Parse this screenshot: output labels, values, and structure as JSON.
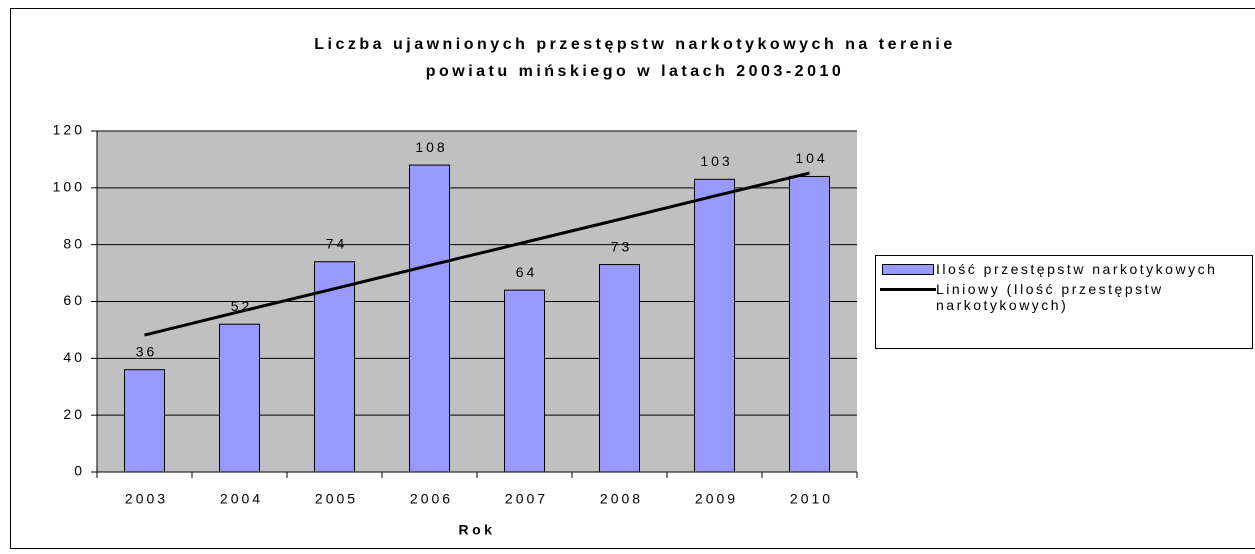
{
  "chart_data": {
    "type": "bar",
    "title": [
      "Liczba ujawnionych przestępstw narkotykowych na terenie",
      "powiatu mińskiego w latach 2003-2010"
    ],
    "x_label": "Rok",
    "categories": [
      "2003",
      "2004",
      "2005",
      "2006",
      "2007",
      "2008",
      "2009",
      "2010"
    ],
    "series": [
      {
        "name": "Ilość przestępstw narkotykowych",
        "type": "bar",
        "color": "#9999ff",
        "values": [
          36,
          52,
          74,
          108,
          64,
          73,
          103,
          104
        ]
      },
      {
        "name": "Liniowy (Ilość przestępstw narkotykowych)",
        "type": "line",
        "color": "#000000",
        "values": [
          48.2,
          56.4,
          64.5,
          72.7,
          80.8,
          88.9,
          97.1,
          105.2
        ]
      }
    ],
    "ylim": [
      0,
      120
    ],
    "yticks": [
      0,
      20,
      40,
      60,
      80,
      100,
      120
    ],
    "grid": true,
    "plot_background": "#c0c0c0",
    "legend": "right"
  }
}
